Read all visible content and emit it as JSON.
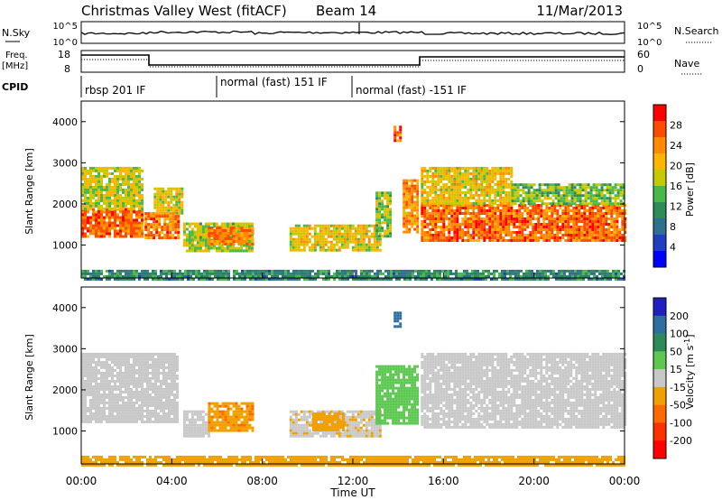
{
  "header": {
    "title": "Christmas Valley West (fitACF)",
    "beam": "Beam 14",
    "date": "11/Mar/2013"
  },
  "panels": {
    "nsky_label": "N.Sky",
    "nsearch_label": "N.Search",
    "nsky_ticks": [
      "10^5",
      "10^0"
    ],
    "nsearch_ticks": [
      "10^5",
      "10^0"
    ],
    "freq_label_1": "Freq.",
    "freq_label_2": "[MHz]",
    "freq_ticks": [
      "18",
      "8"
    ],
    "nave_label": "Nave",
    "nave_ticks": [
      "60",
      "0"
    ],
    "cpid_label": "CPID",
    "cpid_segments": [
      "rbsp 201 IF",
      "normal (fast) 151 IF",
      "normal (fast) -151 IF"
    ]
  },
  "axes": {
    "x_label": "Time UT",
    "x_ticks": [
      "00:00",
      "04:00",
      "08:00",
      "12:00",
      "16:00",
      "20:00",
      "00:00"
    ],
    "y_label": "Slant Range [km]",
    "y_ticks": [
      "1000",
      "2000",
      "3000",
      "4000"
    ]
  },
  "colorbars": {
    "power_label": "Power [dB]",
    "power_ticks": [
      "28",
      "24",
      "20",
      "16",
      "12",
      "8",
      "4"
    ],
    "power_colors": [
      "#ff0000",
      "#ff4b00",
      "#ff8c00",
      "#ffb400",
      "#c8c800",
      "#48b848",
      "#2e8b57",
      "#2f6f8f",
      "#1f3fbf",
      "#0000ff"
    ],
    "velocity_label_base": "Velocity [m s",
    "velocity_label_exp": "-1",
    "velocity_label_close": "]",
    "velocity_ticks": [
      "200",
      "100",
      "50",
      "15",
      "-15",
      "-50",
      "-100",
      "-200"
    ],
    "velocity_colors": [
      "#2020c0",
      "#2e6fa0",
      "#2e8b57",
      "#5cc850",
      "#c8c8c8",
      "#f0a000",
      "#ff6a00",
      "#ff3000",
      "#ff0000"
    ]
  },
  "chart_data": [
    {
      "type": "heatmap",
      "title": "",
      "xlabel": "Time UT",
      "ylabel": "Slant Range [km]",
      "xlim": [
        0,
        24
      ],
      "ylim": [
        200,
        4500
      ],
      "colorbar": {
        "label": "Power [dB]",
        "range": [
          0,
          32
        ]
      },
      "regions": [
        {
          "t0": 0.0,
          "t1": 2.7,
          "r0": 1200,
          "r1": 1900,
          "value": 27
        },
        {
          "t0": 0.0,
          "t1": 2.7,
          "r0": 1900,
          "r1": 2900,
          "value": 18
        },
        {
          "t0": 2.8,
          "t1": 4.3,
          "r0": 1150,
          "r1": 1800,
          "value": 26
        },
        {
          "t0": 3.2,
          "t1": 4.5,
          "r0": 1800,
          "r1": 2400,
          "value": 19
        },
        {
          "t0": 4.5,
          "t1": 7.6,
          "r0": 850,
          "r1": 1550,
          "value": 17
        },
        {
          "t0": 5.6,
          "t1": 7.6,
          "r0": 1000,
          "r1": 1450,
          "value": 25
        },
        {
          "t0": 9.2,
          "t1": 13.2,
          "r0": 900,
          "r1": 1500,
          "value": 20
        },
        {
          "t0": 13.0,
          "t1": 13.6,
          "r0": 1200,
          "r1": 2300,
          "value": 16
        },
        {
          "t0": 13.8,
          "t1": 14.1,
          "r0": 3550,
          "r1": 3900,
          "value": 27
        },
        {
          "t0": 14.2,
          "t1": 14.9,
          "r0": 1300,
          "r1": 2600,
          "value": 24
        },
        {
          "t0": 15.0,
          "t1": 24.0,
          "r0": 1100,
          "r1": 2000,
          "value": 27
        },
        {
          "t0": 15.0,
          "t1": 19.0,
          "r0": 2000,
          "r1": 2900,
          "value": 20
        },
        {
          "t0": 19.0,
          "t1": 24.0,
          "r0": 2000,
          "r1": 2500,
          "value": 15
        },
        {
          "t0": 0.0,
          "t1": 24.0,
          "r0": 200,
          "r1": 400,
          "value": 10
        }
      ]
    },
    {
      "type": "heatmap",
      "title": "",
      "xlabel": "Time UT",
      "ylabel": "Slant Range [km]",
      "xlim": [
        0,
        24
      ],
      "ylim": [
        200,
        4500
      ],
      "colorbar": {
        "label": "Velocity [m s^-1]",
        "range": [
          -250,
          250
        ]
      },
      "regions": [
        {
          "t0": 0.0,
          "t1": 4.3,
          "r0": 1200,
          "r1": 2900,
          "value": 0
        },
        {
          "t0": 4.5,
          "t1": 5.6,
          "r0": 850,
          "r1": 1500,
          "value": 0
        },
        {
          "t0": 5.6,
          "t1": 7.6,
          "r0": 1000,
          "r1": 1700,
          "value": -40
        },
        {
          "t0": 9.2,
          "t1": 13.2,
          "r0": 900,
          "r1": 1500,
          "value": -5
        },
        {
          "t0": 10.2,
          "t1": 11.6,
          "r0": 1000,
          "r1": 1450,
          "value": -30
        },
        {
          "t0": 13.0,
          "t1": 14.8,
          "r0": 1200,
          "r1": 2600,
          "value": 30
        },
        {
          "t0": 13.8,
          "t1": 14.1,
          "r0": 3550,
          "r1": 3900,
          "value": 180
        },
        {
          "t0": 15.0,
          "t1": 24.0,
          "r0": 1100,
          "r1": 2900,
          "value": 0
        },
        {
          "t0": 0.0,
          "t1": 24.0,
          "r0": 200,
          "r1": 400,
          "value": -35
        }
      ]
    }
  ]
}
